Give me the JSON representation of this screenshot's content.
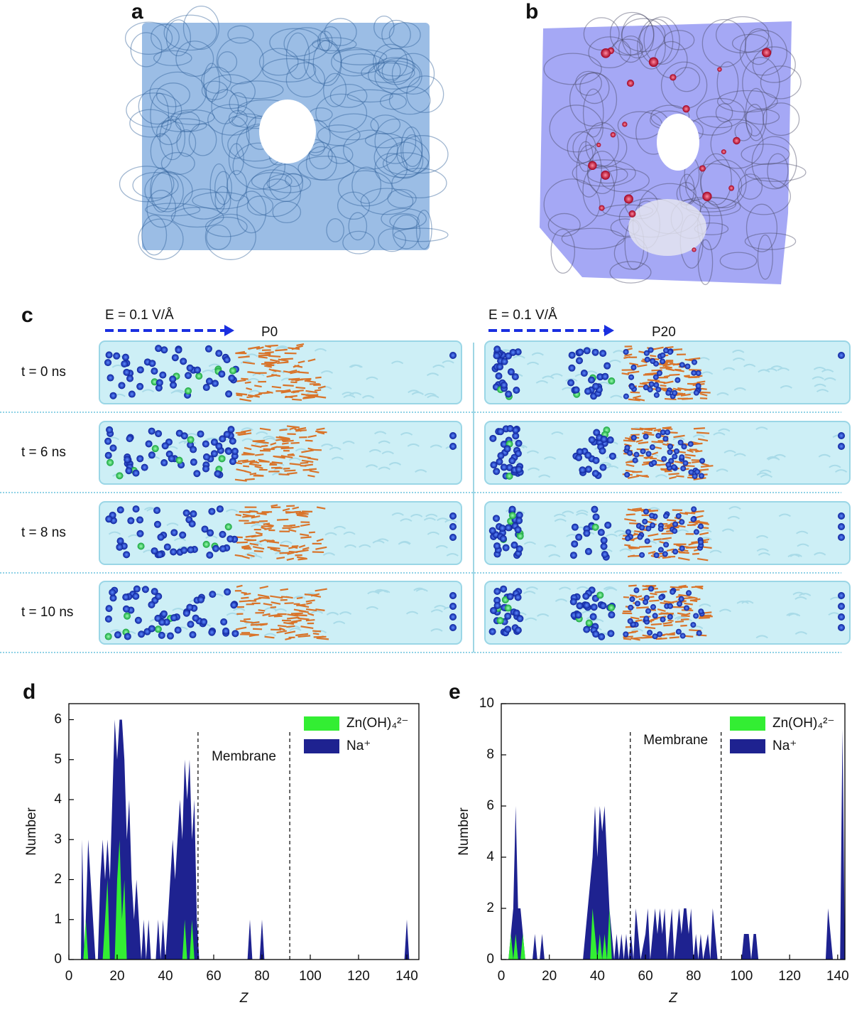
{
  "panels": {
    "a": {
      "label": "a"
    },
    "b": {
      "label": "b"
    },
    "c": {
      "label": "c",
      "left": {
        "field": "E = 0.1 V/Å",
        "name": "P0"
      },
      "right": {
        "field": "E = 0.1 V/Å",
        "name": "P20"
      },
      "times": [
        "t = 0 ns",
        "t = 6 ns",
        "t = 8 ns",
        "t = 10 ns"
      ]
    }
  },
  "chart_data": [
    {
      "type": "area",
      "label": "d",
      "xlabel": "Z",
      "ylabel": "Number",
      "xlim": [
        0,
        145
      ],
      "ylim": [
        0,
        6.4
      ],
      "xticks": [
        0,
        20,
        40,
        60,
        80,
        100,
        120,
        140
      ],
      "yticks": [
        0,
        1,
        2,
        3,
        4,
        5,
        6
      ],
      "dividers": [
        53.5,
        91.5
      ],
      "annotation": "Membrane",
      "legend": "top-right",
      "series": [
        {
          "name": "Na⁺",
          "color": "#1e2290",
          "x": [
            5,
            5.5,
            6.5,
            7,
            8,
            9,
            10,
            11,
            12,
            13,
            14,
            15,
            16,
            17,
            18,
            19,
            20,
            21,
            22,
            23,
            24,
            25,
            26,
            27,
            28,
            29,
            30,
            31,
            32,
            33,
            34,
            36,
            37,
            38,
            39,
            40,
            41,
            42,
            43,
            44,
            45,
            46,
            47,
            48,
            49,
            50,
            51,
            52,
            53,
            54,
            74,
            75,
            76,
            79,
            80,
            81,
            139,
            140,
            141
          ],
          "values": [
            0,
            3,
            0,
            1,
            3,
            2,
            1,
            0,
            0,
            2,
            3,
            2,
            3,
            2,
            4,
            6,
            5,
            6,
            6,
            5,
            3,
            4,
            2,
            1,
            2,
            1,
            0,
            1,
            0,
            1,
            0,
            0,
            1,
            0,
            1,
            0,
            1,
            2,
            3,
            2,
            3,
            4,
            3,
            5,
            4,
            5,
            3,
            4,
            1,
            0,
            0,
            1,
            0,
            0,
            1,
            0,
            0,
            1,
            0
          ]
        },
        {
          "name": "Zn(OH)₄²⁻",
          "color": "#33ee33",
          "x": [
            6,
            7,
            8,
            14,
            15,
            16,
            17,
            19,
            20,
            21,
            22,
            23,
            24,
            47,
            48,
            49,
            50,
            51,
            52
          ],
          "values": [
            0,
            1,
            0,
            0,
            1,
            2,
            0,
            0,
            2,
            3,
            1,
            2,
            0,
            0,
            1,
            0,
            0,
            1,
            0
          ]
        }
      ]
    },
    {
      "type": "area",
      "label": "e",
      "xlabel": "Z",
      "ylabel": "Number",
      "xlim": [
        0,
        143
      ],
      "ylim": [
        0,
        10
      ],
      "xticks": [
        0,
        20,
        40,
        60,
        80,
        100,
        120,
        140
      ],
      "yticks": [
        0,
        2,
        4,
        6,
        8,
        10
      ],
      "dividers": [
        53.7,
        91.5
      ],
      "annotation": "Membrane",
      "legend": "top-right",
      "series": [
        {
          "name": "Na⁺",
          "color": "#1e2290",
          "x": [
            3,
            4,
            5,
            6,
            7,
            8,
            9,
            10,
            13,
            14,
            15,
            16,
            17,
            18,
            34,
            35,
            36,
            37,
            38,
            39,
            40,
            41,
            42,
            43,
            44,
            45,
            46,
            47,
            48,
            49,
            50,
            51,
            52,
            53,
            54,
            55,
            56,
            57,
            58,
            60,
            61,
            62,
            64,
            65,
            66,
            67,
            68,
            69,
            70,
            71,
            72,
            73,
            74,
            75,
            76,
            77,
            78,
            79,
            80,
            81,
            82,
            83,
            84,
            86,
            87,
            88,
            89,
            90,
            100,
            101,
            103,
            104,
            105,
            106,
            107,
            135,
            136,
            137,
            138,
            141,
            142,
            143
          ],
          "values": [
            0,
            1,
            2,
            6,
            2,
            2,
            1,
            0,
            0,
            1,
            0,
            0,
            1,
            0,
            0,
            1,
            2,
            3,
            4,
            6,
            4,
            6,
            5,
            6,
            4,
            2,
            1,
            0,
            1,
            0,
            1,
            0,
            1,
            0,
            1,
            0,
            2,
            1,
            0,
            1,
            2,
            0,
            2,
            1,
            2,
            1,
            2,
            0,
            1,
            2,
            0,
            1,
            2,
            1,
            2,
            2,
            1,
            2,
            0,
            1,
            0,
            1,
            0,
            1,
            0,
            2,
            1,
            0,
            0,
            1,
            1,
            0,
            1,
            1,
            0,
            0,
            2,
            1,
            0,
            0,
            9,
            0
          ]
        },
        {
          "name": "Zn(OH)₄²⁻",
          "color": "#33ee33",
          "x": [
            3,
            4,
            5,
            6,
            7,
            8,
            9,
            10,
            37,
            38,
            39,
            40,
            41,
            42,
            43,
            44,
            45,
            46
          ],
          "values": [
            0,
            1,
            0,
            1,
            0,
            0,
            1,
            0,
            0,
            2,
            1,
            0,
            1,
            0,
            1,
            0,
            2,
            0
          ]
        }
      ]
    }
  ]
}
